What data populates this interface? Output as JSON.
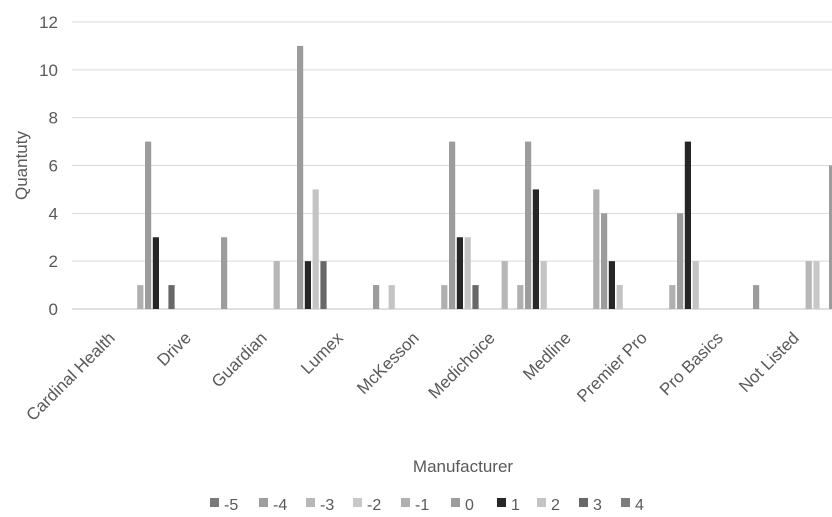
{
  "chart_data": {
    "type": "bar",
    "title": "",
    "xlabel": "Manufacturer",
    "ylabel": "Quantuty",
    "ylim": [
      0,
      12
    ],
    "yticks": [
      0,
      2,
      4,
      6,
      8,
      10,
      12
    ],
    "grid": "horizontal",
    "legend_position": "bottom",
    "categories": [
      "Cardinal Health",
      "Drive",
      "Guardian",
      "Lumex",
      "McKesson",
      "Medichoice",
      "Medline",
      "Premier Pro",
      "Pro Basics",
      "Not Listed"
    ],
    "series": [
      {
        "name": "-5",
        "color": "#7a7a7a",
        "values": [
          0,
          0,
          0,
          0,
          0,
          0,
          0,
          0,
          0,
          0
        ]
      },
      {
        "name": "-4",
        "color": "#9e9e9e",
        "values": [
          0,
          0,
          0,
          0,
          0,
          0,
          0,
          0,
          0,
          0
        ]
      },
      {
        "name": "-3",
        "color": "#b7b7b7",
        "values": [
          0,
          0,
          2,
          0,
          0,
          2,
          0,
          0,
          0,
          2
        ]
      },
      {
        "name": "-2",
        "color": "#c8c8c8",
        "values": [
          0,
          0,
          0,
          0,
          0,
          0,
          0,
          0,
          0,
          2
        ]
      },
      {
        "name": "-1",
        "color": "#b0b0b0",
        "values": [
          1,
          0,
          0,
          0,
          1,
          1,
          5,
          1,
          0,
          0
        ]
      },
      {
        "name": "0",
        "color": "#9c9c9c",
        "values": [
          7,
          3,
          11,
          1,
          7,
          7,
          4,
          4,
          1,
          6
        ]
      },
      {
        "name": "1",
        "color": "#262626",
        "values": [
          3,
          0,
          2,
          0,
          3,
          5,
          2,
          7,
          0,
          5
        ]
      },
      {
        "name": "2",
        "color": "#c4c4c4",
        "values": [
          0,
          0,
          5,
          1,
          3,
          2,
          1,
          2,
          0,
          1
        ]
      },
      {
        "name": "3",
        "color": "#686868",
        "values": [
          1,
          0,
          2,
          0,
          1,
          0,
          0,
          0,
          0,
          1
        ]
      },
      {
        "name": "4",
        "color": "#7d7d7d",
        "values": [
          0,
          0,
          0,
          0,
          0,
          0,
          0,
          0,
          0,
          0
        ]
      }
    ]
  }
}
